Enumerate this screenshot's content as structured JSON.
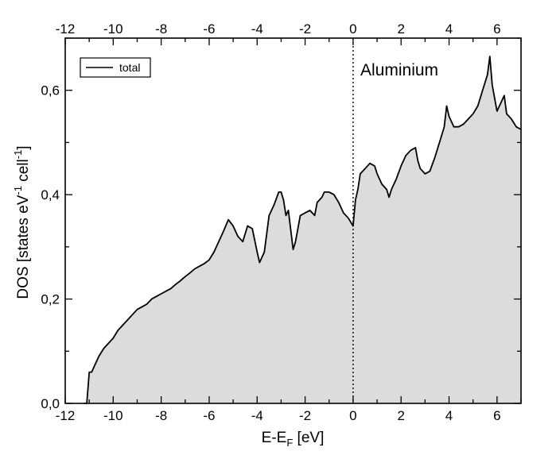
{
  "chart_data": {
    "type": "area",
    "xlabel": "E-E",
    "xlabel_sub": "F",
    "xlabel_unit": " [eV]",
    "ylabel": "DOS [states eV",
    "ylabel_sup1": "-1",
    "ylabel_mid": " cell",
    "ylabel_sup2": "-1",
    "ylabel_end": "]",
    "annotation": "Aluminium",
    "xlim": [
      -12,
      7
    ],
    "ylim": [
      0,
      0.7
    ],
    "x_ticks": [
      -12,
      -10,
      -8,
      -6,
      -4,
      -2,
      0,
      2,
      4,
      6
    ],
    "x_tick_labels": [
      "-12",
      "-10",
      "-8",
      "-6",
      "-4",
      "-2",
      "0",
      "2",
      "4",
      "6"
    ],
    "y_ticks": [
      0,
      0.2,
      0.4,
      0.6
    ],
    "y_tick_labels": [
      "0,0",
      "0,2",
      "0,4",
      "0,6"
    ],
    "top_axis_mirrored": true,
    "fermi_line_x": 0,
    "fill_color": "#dcdcdc",
    "line_color": "#000000",
    "legend": {
      "position": "top-left",
      "entries": [
        "total"
      ]
    },
    "series": [
      {
        "name": "total",
        "x": [
          -11.2,
          -11.1,
          -11.0,
          -10.9,
          -10.8,
          -10.6,
          -10.4,
          -10.2,
          -10.0,
          -9.8,
          -9.6,
          -9.4,
          -9.2,
          -9.0,
          -8.8,
          -8.6,
          -8.4,
          -8.2,
          -8.0,
          -7.8,
          -7.6,
          -7.4,
          -7.2,
          -7.0,
          -6.8,
          -6.6,
          -6.4,
          -6.2,
          -6.0,
          -5.8,
          -5.6,
          -5.4,
          -5.2,
          -5.0,
          -4.8,
          -4.6,
          -4.4,
          -4.2,
          -4.0,
          -3.9,
          -3.7,
          -3.5,
          -3.3,
          -3.1,
          -3.0,
          -2.9,
          -2.8,
          -2.7,
          -2.5,
          -2.4,
          -2.2,
          -2.0,
          -1.8,
          -1.6,
          -1.5,
          -1.3,
          -1.2,
          -1.0,
          -0.8,
          -0.6,
          -0.4,
          -0.2,
          0.0,
          0.1,
          0.2,
          0.3,
          0.5,
          0.7,
          0.9,
          1.0,
          1.2,
          1.4,
          1.5,
          1.6,
          1.8,
          2.0,
          2.2,
          2.4,
          2.6,
          2.7,
          2.8,
          3.0,
          3.2,
          3.4,
          3.6,
          3.8,
          3.9,
          4.0,
          4.2,
          4.4,
          4.6,
          4.8,
          5.0,
          5.2,
          5.4,
          5.6,
          5.7,
          5.8,
          6.0,
          6.2,
          6.3,
          6.4,
          6.6,
          6.8,
          7.0
        ],
        "y": [
          0.0,
          0.0,
          0.06,
          0.06,
          0.07,
          0.09,
          0.105,
          0.115,
          0.125,
          0.14,
          0.15,
          0.16,
          0.17,
          0.18,
          0.185,
          0.19,
          0.2,
          0.205,
          0.21,
          0.215,
          0.22,
          0.228,
          0.235,
          0.243,
          0.25,
          0.258,
          0.263,
          0.268,
          0.275,
          0.29,
          0.31,
          0.33,
          0.352,
          0.34,
          0.32,
          0.31,
          0.34,
          0.335,
          0.29,
          0.27,
          0.29,
          0.36,
          0.38,
          0.405,
          0.405,
          0.39,
          0.36,
          0.37,
          0.295,
          0.31,
          0.36,
          0.365,
          0.37,
          0.36,
          0.385,
          0.395,
          0.405,
          0.405,
          0.4,
          0.385,
          0.365,
          0.355,
          0.34,
          0.39,
          0.41,
          0.44,
          0.45,
          0.46,
          0.455,
          0.44,
          0.42,
          0.41,
          0.395,
          0.41,
          0.43,
          0.455,
          0.475,
          0.485,
          0.49,
          0.465,
          0.45,
          0.44,
          0.445,
          0.47,
          0.5,
          0.53,
          0.57,
          0.55,
          0.53,
          0.53,
          0.535,
          0.545,
          0.555,
          0.57,
          0.6,
          0.63,
          0.665,
          0.61,
          0.56,
          0.58,
          0.59,
          0.555,
          0.545,
          0.53,
          0.525
        ]
      }
    ]
  }
}
